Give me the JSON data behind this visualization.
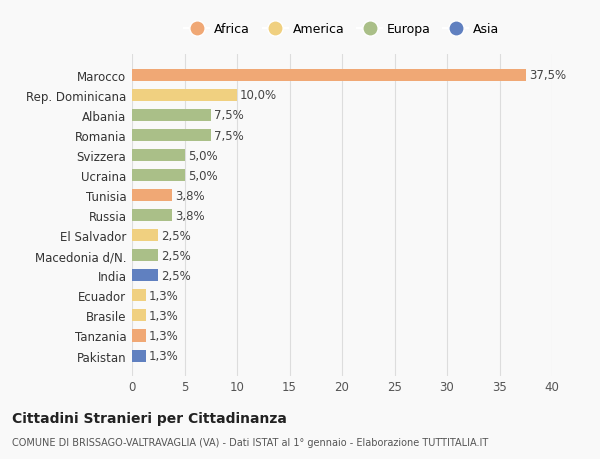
{
  "categories": [
    "Marocco",
    "Rep. Dominicana",
    "Albania",
    "Romania",
    "Svizzera",
    "Ucraina",
    "Tunisia",
    "Russia",
    "El Salvador",
    "Macedonia d/N.",
    "India",
    "Ecuador",
    "Brasile",
    "Tanzania",
    "Pakistan"
  ],
  "values": [
    37.5,
    10.0,
    7.5,
    7.5,
    5.0,
    5.0,
    3.8,
    3.8,
    2.5,
    2.5,
    2.5,
    1.3,
    1.3,
    1.3,
    1.3
  ],
  "labels": [
    "37,5%",
    "10,0%",
    "7,5%",
    "7,5%",
    "5,0%",
    "5,0%",
    "3,8%",
    "3,8%",
    "2,5%",
    "2,5%",
    "2,5%",
    "1,3%",
    "1,3%",
    "1,3%",
    "1,3%"
  ],
  "continents": [
    "Africa",
    "America",
    "Europa",
    "Europa",
    "Europa",
    "Europa",
    "Africa",
    "Europa",
    "America",
    "Europa",
    "Asia",
    "America",
    "America",
    "Africa",
    "Asia"
  ],
  "continent_colors": {
    "Africa": "#F0A875",
    "America": "#F0D080",
    "Europa": "#AABF88",
    "Asia": "#6080C0"
  },
  "legend_order": [
    "Africa",
    "America",
    "Europa",
    "Asia"
  ],
  "title": "Cittadini Stranieri per Cittadinanza",
  "subtitle": "COMUNE DI BRISSAGO-VALTRAVAGLIA (VA) - Dati ISTAT al 1° gennaio - Elaborazione TUTTITALIA.IT",
  "xlim": [
    0,
    40
  ],
  "xticks": [
    0,
    5,
    10,
    15,
    20,
    25,
    30,
    35,
    40
  ],
  "background_color": "#f9f9f9",
  "grid_color": "#dddddd"
}
